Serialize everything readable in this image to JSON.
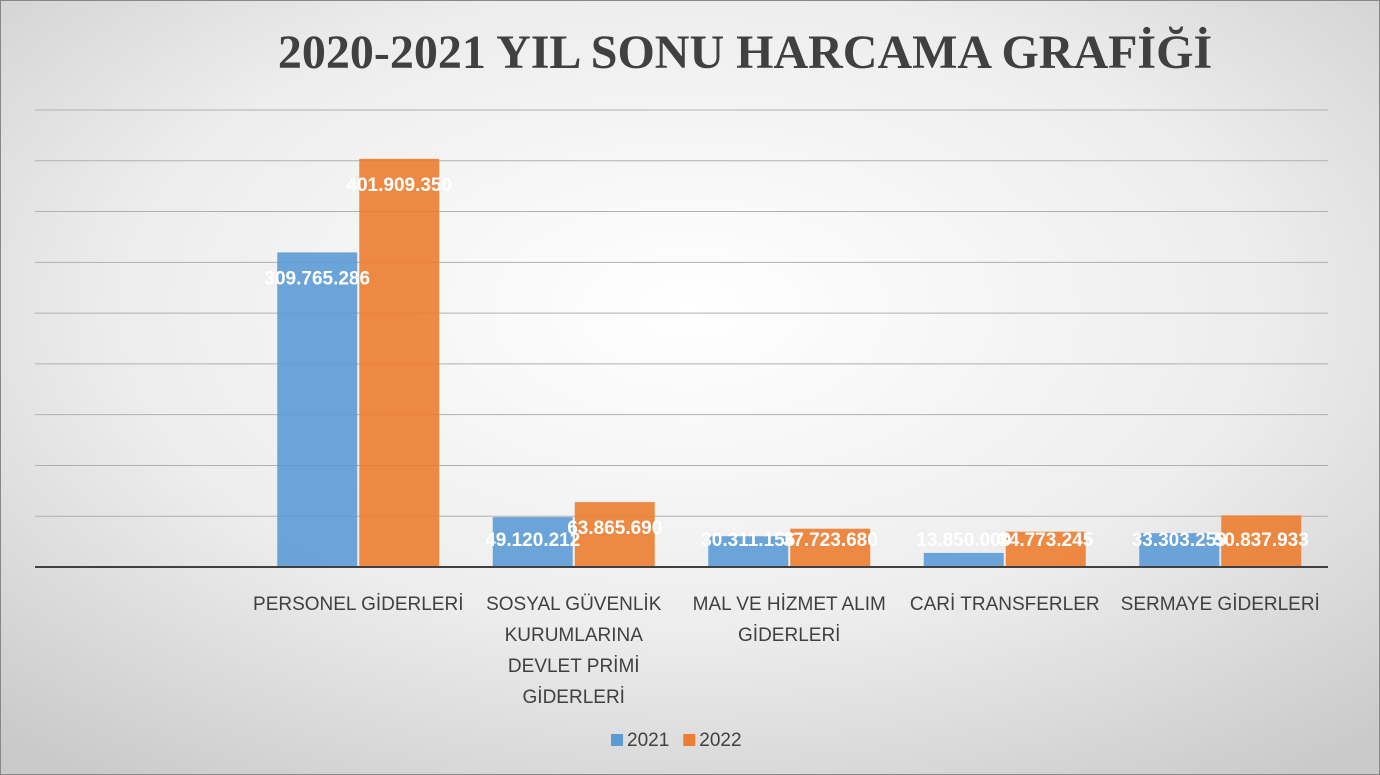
{
  "chart_data": {
    "type": "bar",
    "title": "2020-2021 YIL SONU HARCAMA GRAFİĞİ",
    "categories": [
      null,
      "PERSONEL GİDERLERİ",
      "SOSYAL GÜVENLİK KURUMLARINA DEVLET PRİMİ GİDERLERİ",
      "MAL VE HİZMET ALIM GİDERLERİ",
      "CARİ TRANSFERLER",
      "SERMAYE GİDERLERİ"
    ],
    "series": [
      {
        "name": "2021",
        "color": "#5b9bd5",
        "values": [
          null,
          309765286,
          49120212,
          30311156,
          13850000,
          33303259
        ],
        "value_labels": [
          null,
          "309.765.286",
          "49.120.212",
          "30.311.156",
          "13.850.000",
          "33.303.259"
        ]
      },
      {
        "name": "2022",
        "color": "#ed7d31",
        "values": [
          null,
          401909350,
          63865690,
          37723680,
          34773245,
          50837933
        ],
        "value_labels": [
          null,
          "401.909.350",
          "63.865.690",
          "37.723.680",
          "34.773.245",
          "50.837.933"
        ]
      }
    ],
    "ylim": [
      0,
      450000000
    ],
    "yticks": [
      0,
      50000000,
      100000000,
      150000000,
      200000000,
      250000000,
      300000000,
      350000000,
      400000000,
      450000000
    ],
    "grid": true,
    "legend": "bottom"
  }
}
